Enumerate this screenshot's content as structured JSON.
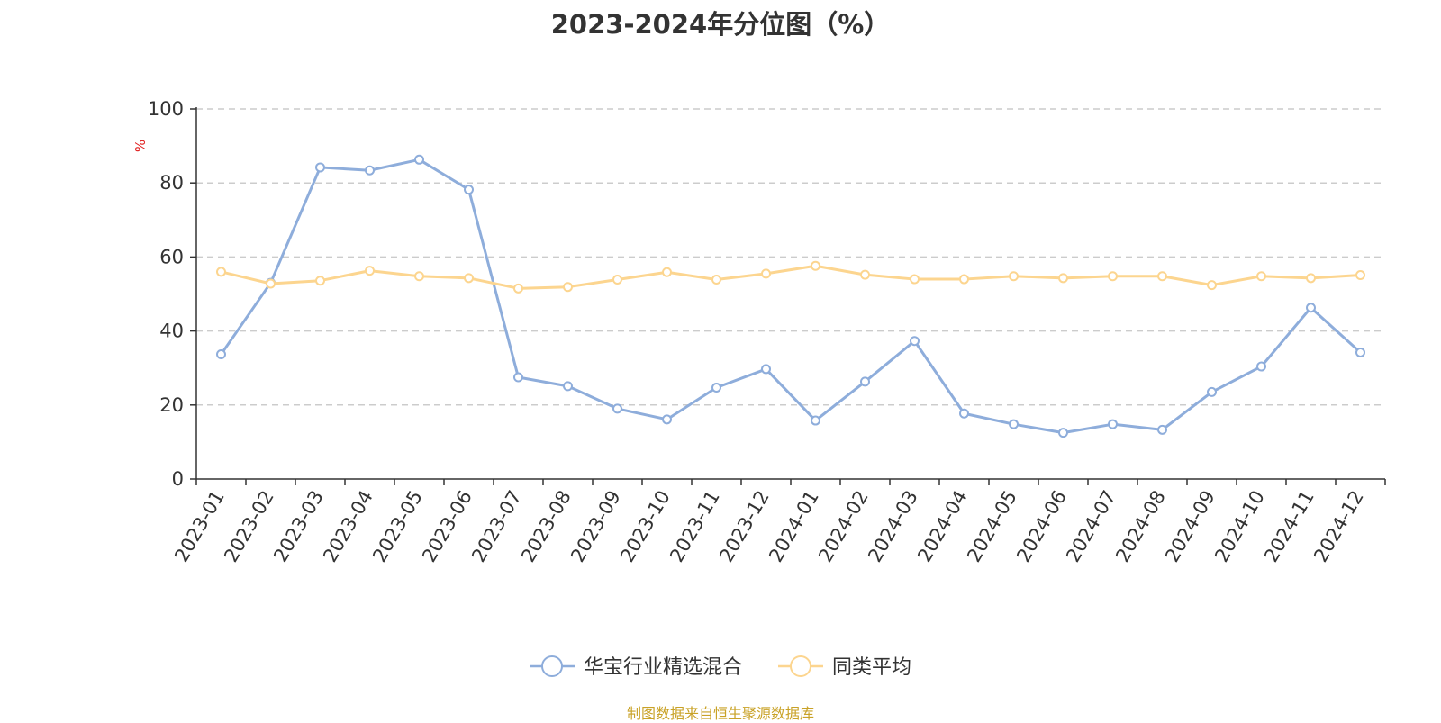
{
  "chart_data": {
    "type": "line",
    "title": "2023-2024年分位图（%）",
    "ylabel": "%",
    "ylim": [
      0,
      100
    ],
    "yticks": [
      0,
      20,
      40,
      60,
      80,
      100
    ],
    "grid": true,
    "legend_position": "bottom-center",
    "categories": [
      "2023-01",
      "2023-02",
      "2023-03",
      "2023-04",
      "2023-05",
      "2023-06",
      "2023-07",
      "2023-08",
      "2023-09",
      "2023-10",
      "2023-11",
      "2023-12",
      "2024-01",
      "2024-02",
      "2024-03",
      "2024-04",
      "2024-05",
      "2024-06",
      "2024-07",
      "2024-08",
      "2024-09",
      "2024-10",
      "2024-11",
      "2024-12"
    ],
    "series": [
      {
        "name": "华宝行业精选混合",
        "color": "#8eaddb",
        "values": [
          33.7,
          53.0,
          84.2,
          83.4,
          86.3,
          78.2,
          27.5,
          25.1,
          19.0,
          16.1,
          24.7,
          29.7,
          15.8,
          26.3,
          37.3,
          17.7,
          14.8,
          12.5,
          14.8,
          13.3,
          23.5,
          30.4,
          46.3,
          34.2
        ]
      },
      {
        "name": "同类平均",
        "color": "#fcd58f",
        "values": [
          56.0,
          52.8,
          53.6,
          56.3,
          54.8,
          54.3,
          51.5,
          51.9,
          53.9,
          55.9,
          53.9,
          55.5,
          57.6,
          55.2,
          54.0,
          54.0,
          54.8,
          54.3,
          54.8,
          54.8,
          52.4,
          54.8,
          54.3,
          55.1
        ]
      }
    ]
  },
  "footer": {
    "source": "制图数据来自恒生聚源数据库"
  }
}
